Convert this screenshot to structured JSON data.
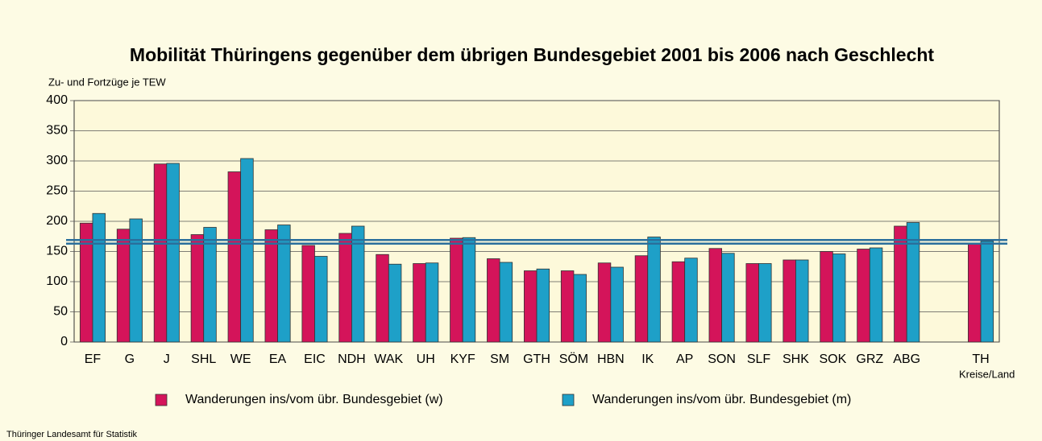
{
  "chart_data": {
    "type": "bar",
    "title": "Mobilität Thüringens  gegenüber dem übrigen Bundesgebiet 2001 bis 2006 nach Geschlecht",
    "y_label": "Zu- und Fortzüge je TEW",
    "x_label": "Kreise/Land",
    "source": "Thüringer Landesamt für Statistik",
    "categories": [
      "EF",
      "G",
      "J",
      "SHL",
      "WE",
      "EA",
      "EIC",
      "NDH",
      "WAK",
      "UH",
      "KYF",
      "SM",
      "GTH",
      "SÖM",
      "HBN",
      "IK",
      "AP",
      "SON",
      "SLF",
      "SHK",
      "SOK",
      "GRZ",
      "ABG",
      null,
      "TH"
    ],
    "series": [
      {
        "name": "Wanderungen ins/vom übr. Bundesgebiet (w)",
        "color": "#d4145a",
        "values": [
          197,
          187,
          295,
          178,
          282,
          186,
          160,
          180,
          145,
          130,
          172,
          138,
          118,
          118,
          131,
          143,
          133,
          155,
          130,
          136,
          150,
          154,
          192,
          null,
          162
        ]
      },
      {
        "name": "Wanderungen ins/vom übr. Bundesgebiet (m)",
        "color": "#1ea0c8",
        "values": [
          213,
          204,
          296,
          190,
          304,
          194,
          142,
          192,
          129,
          131,
          173,
          132,
          121,
          112,
          124,
          174,
          139,
          147,
          130,
          136,
          146,
          156,
          198,
          null,
          167
        ]
      }
    ],
    "reference_lines": [
      169,
      163
    ],
    "reference_color": "#2a6f9c",
    "ylim": [
      0,
      400
    ],
    "yticks": [
      0,
      50,
      100,
      150,
      200,
      250,
      300,
      350,
      400
    ],
    "grid": true
  }
}
